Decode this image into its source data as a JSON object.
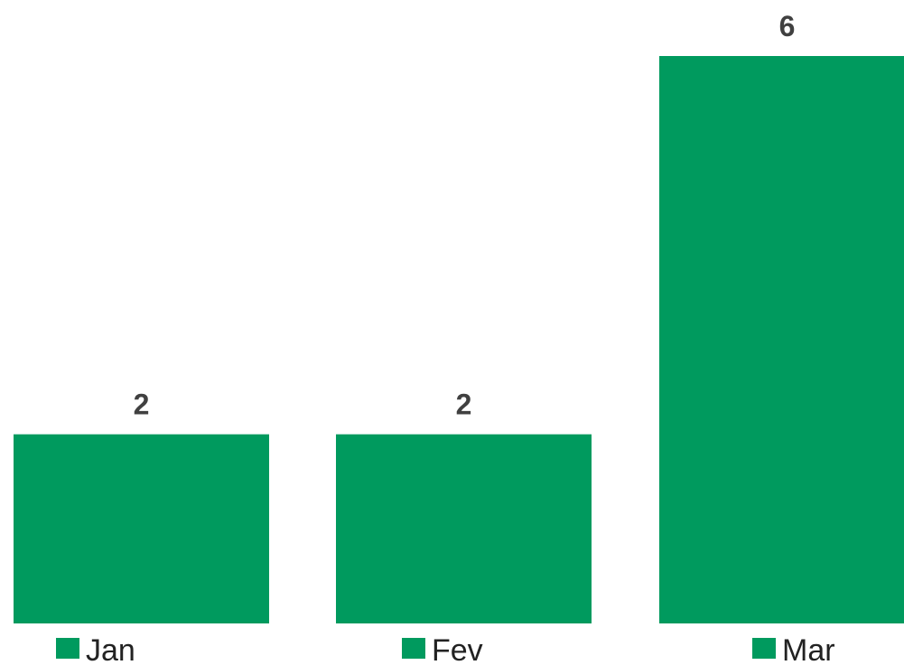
{
  "chart_data": {
    "type": "bar",
    "categories": [
      "Jan",
      "Fev",
      "Mar"
    ],
    "values": [
      2,
      2,
      6
    ],
    "data_labels": [
      "2",
      "2",
      "6"
    ],
    "bar_color": "#009A5E",
    "legend": [
      "Jan",
      "Fev",
      "Mar"
    ],
    "legend_position": "bottom",
    "grid": false,
    "ylim": [
      0,
      6
    ]
  }
}
